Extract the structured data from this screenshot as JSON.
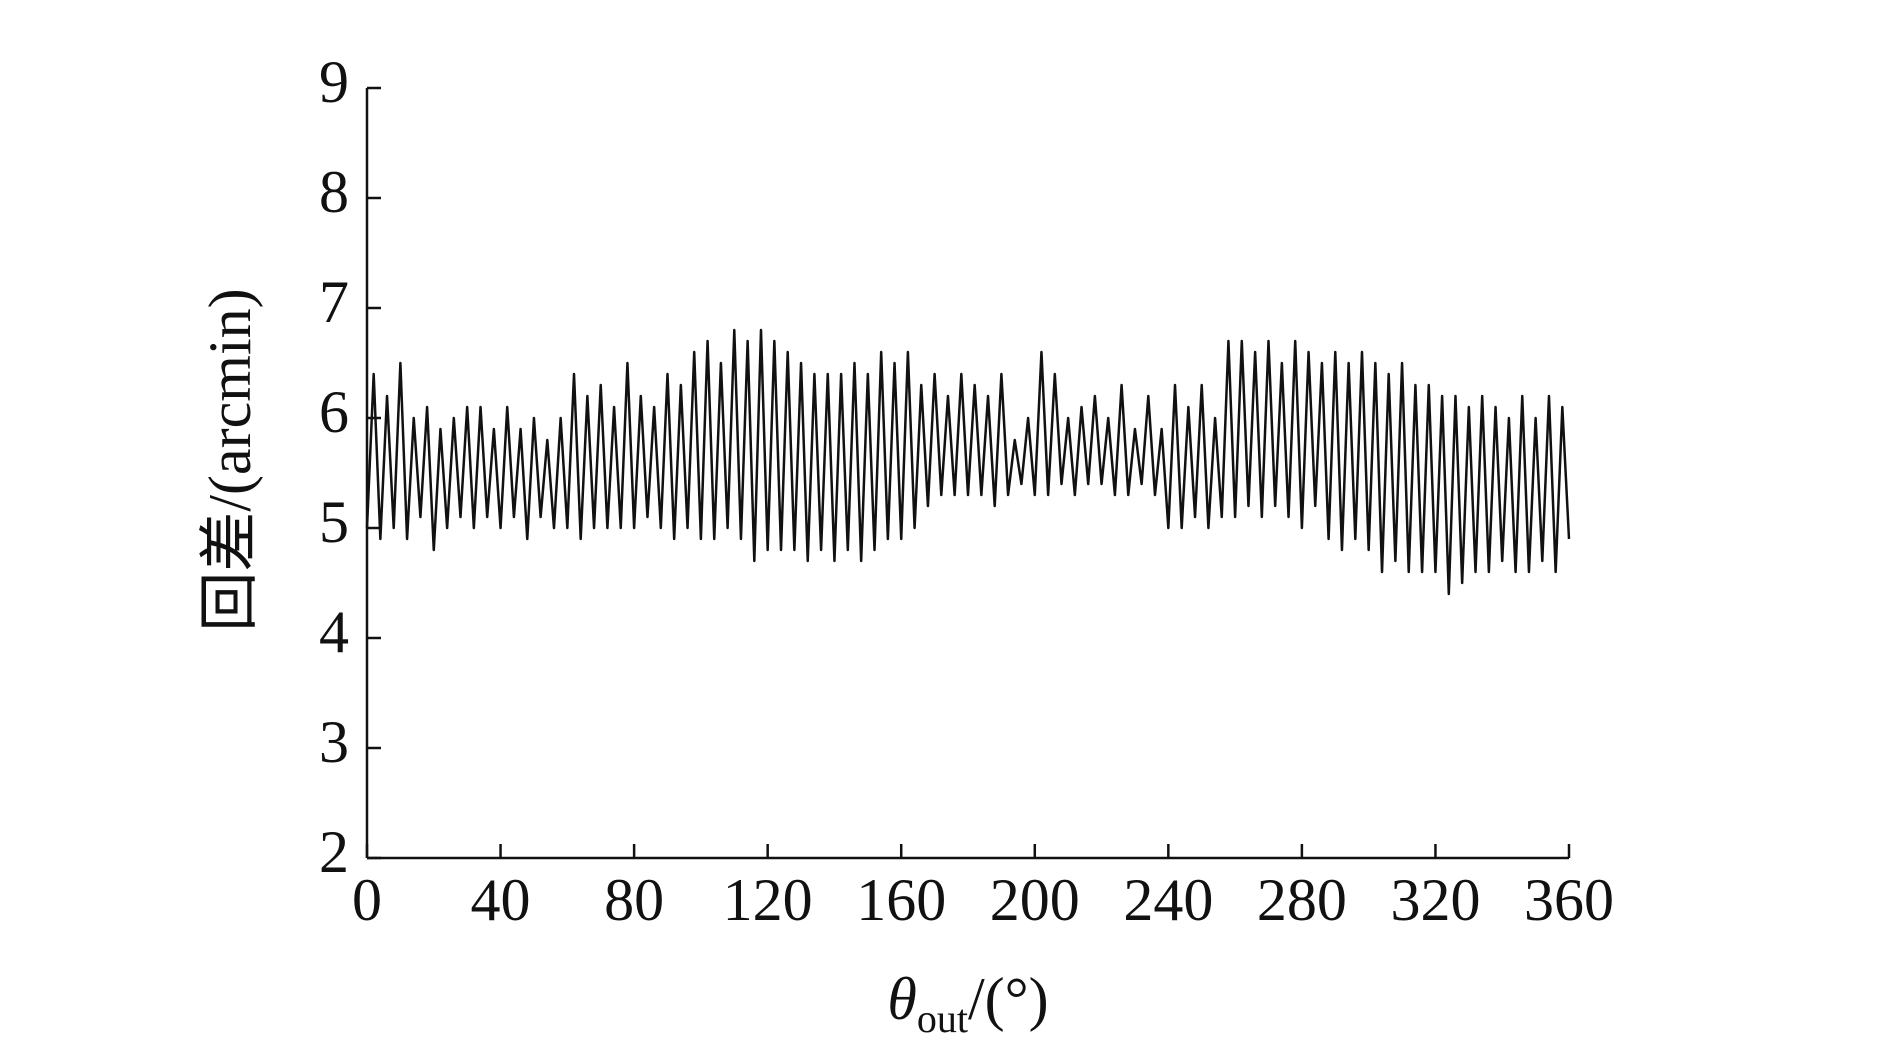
{
  "chart_data": {
    "type": "line",
    "y_label": "回差/(arcmin)",
    "x_label": {
      "symbol": "θ",
      "subscript": "out",
      "unit": "/(°)"
    },
    "xlim": [
      0,
      360
    ],
    "xticks": [
      0,
      40,
      80,
      120,
      160,
      200,
      240,
      280,
      320,
      360
    ],
    "ylim": [
      2,
      9
    ],
    "yticks": [
      2,
      3,
      4,
      5,
      6,
      7,
      8,
      9
    ],
    "grid": false,
    "x": [
      0,
      2,
      4,
      6,
      8,
      10,
      12,
      14,
      16,
      18,
      20,
      22,
      24,
      26,
      28,
      30,
      32,
      34,
      36,
      38,
      40,
      42,
      44,
      46,
      48,
      50,
      52,
      54,
      56,
      58,
      60,
      62,
      64,
      66,
      68,
      70,
      72,
      74,
      76,
      78,
      80,
      82,
      84,
      86,
      88,
      90,
      92,
      94,
      96,
      98,
      100,
      102,
      104,
      106,
      108,
      110,
      112,
      114,
      116,
      118,
      120,
      122,
      124,
      126,
      128,
      130,
      132,
      134,
      136,
      138,
      140,
      142,
      144,
      146,
      148,
      150,
      152,
      154,
      156,
      158,
      160,
      162,
      164,
      166,
      168,
      170,
      172,
      174,
      176,
      178,
      180,
      182,
      184,
      186,
      188,
      190,
      192,
      194,
      196,
      198,
      200,
      202,
      204,
      206,
      208,
      210,
      212,
      214,
      216,
      218,
      220,
      222,
      224,
      226,
      228,
      230,
      232,
      234,
      236,
      238,
      240,
      242,
      244,
      246,
      248,
      250,
      252,
      254,
      256,
      258,
      260,
      262,
      264,
      266,
      268,
      270,
      272,
      274,
      276,
      278,
      280,
      282,
      284,
      286,
      288,
      290,
      292,
      294,
      296,
      298,
      300,
      302,
      304,
      306,
      308,
      310,
      312,
      314,
      316,
      318,
      320,
      322,
      324,
      326,
      328,
      330,
      332,
      334,
      336,
      338,
      340,
      342,
      344,
      346,
      348,
      350,
      352,
      354,
      356,
      358,
      360
    ],
    "series": [
      {
        "color": "#111111",
        "values": [
          5.0,
          6.4,
          4.9,
          6.2,
          5.0,
          6.5,
          4.9,
          6.0,
          5.1,
          6.1,
          4.8,
          5.9,
          5.0,
          6.0,
          5.1,
          6.1,
          5.0,
          6.1,
          5.1,
          5.9,
          5.0,
          6.1,
          5.1,
          5.9,
          4.9,
          6.0,
          5.1,
          5.8,
          5.0,
          6.0,
          5.0,
          6.4,
          4.9,
          6.2,
          5.0,
          6.3,
          5.0,
          6.1,
          5.0,
          6.5,
          5.0,
          6.2,
          5.1,
          6.1,
          5.0,
          6.4,
          4.9,
          6.3,
          5.0,
          6.6,
          4.9,
          6.7,
          4.9,
          6.5,
          5.0,
          6.8,
          4.9,
          6.7,
          4.7,
          6.8,
          4.8,
          6.7,
          4.8,
          6.6,
          4.8,
          6.5,
          4.7,
          6.4,
          4.8,
          6.4,
          4.7,
          6.4,
          4.8,
          6.5,
          4.7,
          6.4,
          4.8,
          6.6,
          4.9,
          6.5,
          4.9,
          6.6,
          5.0,
          6.3,
          5.2,
          6.4,
          5.3,
          6.2,
          5.3,
          6.4,
          5.3,
          6.3,
          5.3,
          6.2,
          5.2,
          6.4,
          5.3,
          5.8,
          5.4,
          6.0,
          5.3,
          6.6,
          5.3,
          6.4,
          5.4,
          6.0,
          5.3,
          6.1,
          5.4,
          6.2,
          5.4,
          6.0,
          5.3,
          6.3,
          5.3,
          5.9,
          5.4,
          6.2,
          5.3,
          5.9,
          5.0,
          6.3,
          5.0,
          6.1,
          5.1,
          6.3,
          5.0,
          6.0,
          5.1,
          6.7,
          5.1,
          6.7,
          5.2,
          6.6,
          5.1,
          6.7,
          5.2,
          6.5,
          5.1,
          6.7,
          5.0,
          6.6,
          5.2,
          6.5,
          4.9,
          6.6,
          4.8,
          6.5,
          4.9,
          6.6,
          4.8,
          6.5,
          4.6,
          6.4,
          4.7,
          6.5,
          4.6,
          6.3,
          4.6,
          6.3,
          4.6,
          6.2,
          4.4,
          6.2,
          4.5,
          6.1,
          4.6,
          6.2,
          4.6,
          6.1,
          4.7,
          6.0,
          4.6,
          6.2,
          4.6,
          6.0,
          4.7,
          6.2,
          4.6,
          6.1,
          4.9
        ]
      }
    ]
  }
}
